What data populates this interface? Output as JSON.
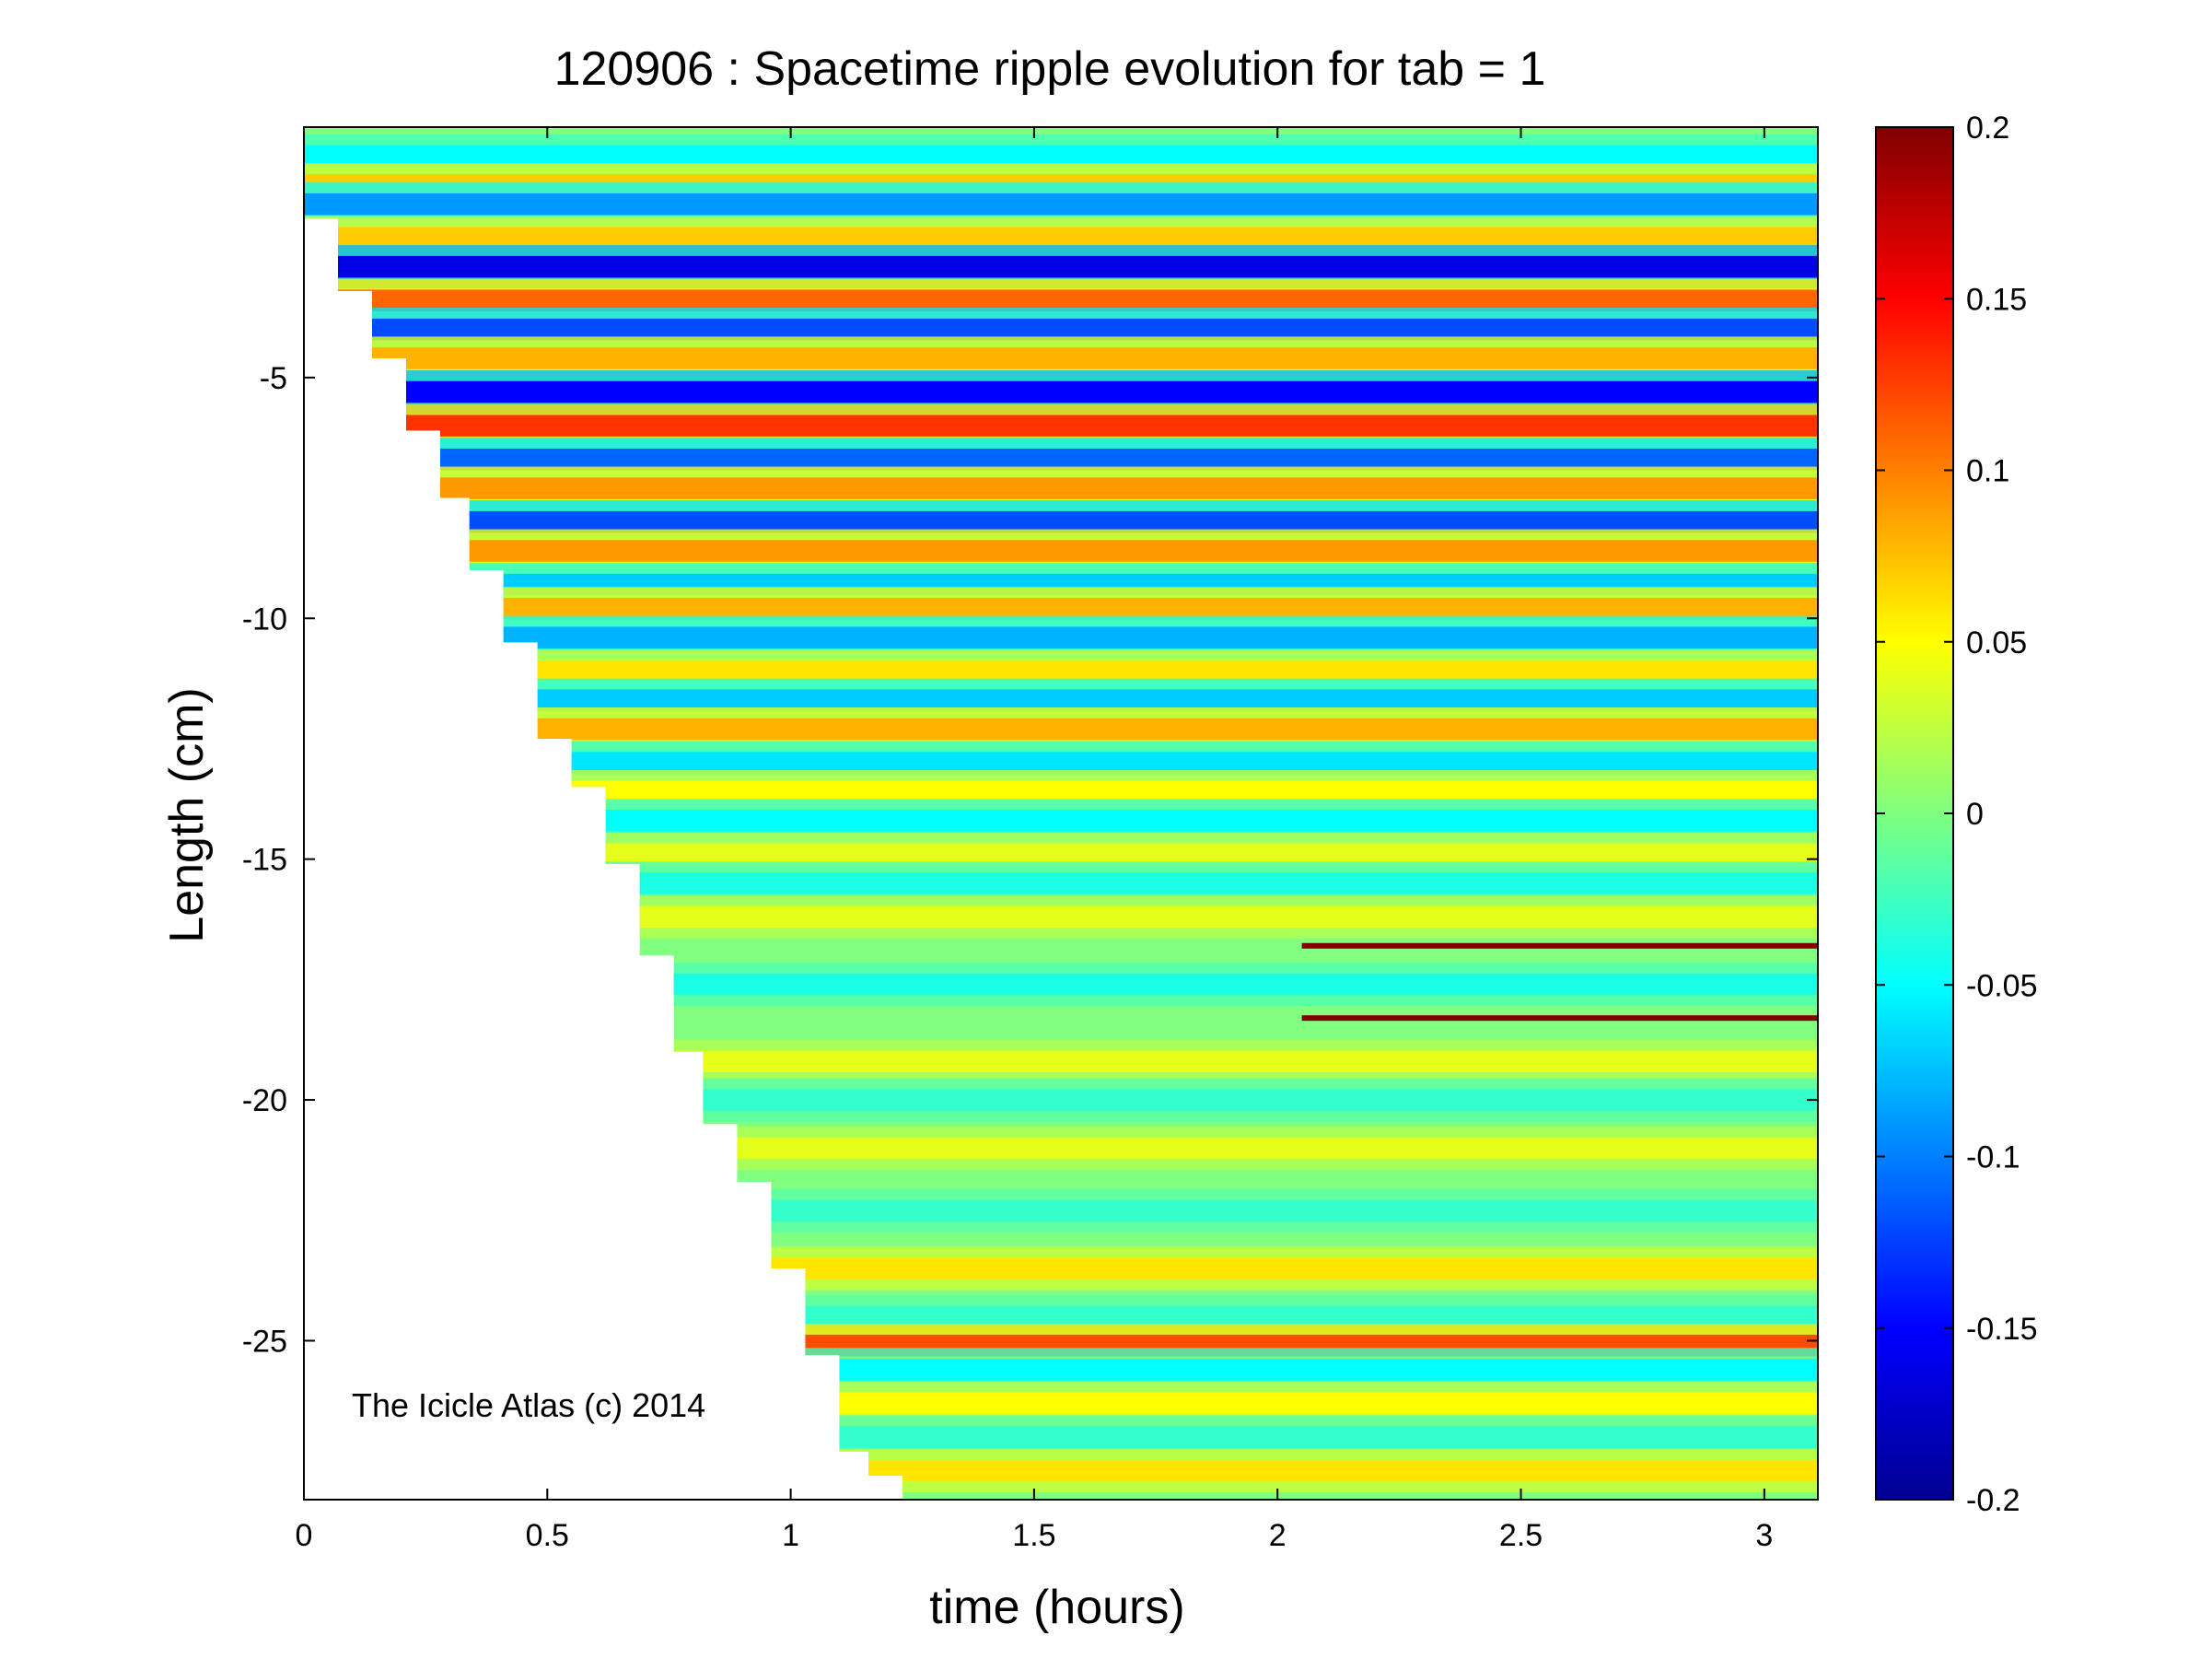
{
  "chart_data": {
    "type": "heatmap",
    "title": "120906 : Spacetime ripple evolution for tab = 1",
    "xlabel": "time (hours)",
    "ylabel": "Length (cm)",
    "xlim": [
      0,
      3.11
    ],
    "ylim": [
      -28.3,
      0.2
    ],
    "xticks": [
      0,
      0.5,
      1,
      1.5,
      2,
      2.5,
      3
    ],
    "xtick_labels": [
      "0",
      "0.5",
      "1",
      "1.5",
      "2",
      "2.5",
      "3"
    ],
    "yticks": [
      -5,
      -10,
      -15,
      -20,
      -25
    ],
    "ytick_labels": [
      "-5",
      "-10",
      "-15",
      "-20",
      "-25"
    ],
    "colormap": "jet",
    "clim": [
      -0.2,
      0.2
    ],
    "colorbar_ticks": [
      0.2,
      0.15,
      0.1,
      0.05,
      0,
      -0.05,
      -0.1,
      -0.15,
      -0.2
    ],
    "colorbar_labels": [
      "0.2",
      "0.15",
      "0.1",
      "0.05",
      "0",
      "-0.05",
      "-0.1",
      "-0.15",
      "-0.2"
    ],
    "annotation": "The Icicle Atlas (c) 2014",
    "growth_front": {
      "description_free_points_t": [
        0,
        0.07,
        0.14,
        0.21,
        0.28,
        0.34,
        0.41,
        0.48,
        0.55,
        0.62,
        0.69,
        0.76,
        0.82,
        0.89,
        0.96,
        1.03,
        1.1,
        1.16,
        1.23,
        1.42
      ],
      "points_length": [
        -0.2,
        -1.7,
        -3.2,
        -4.6,
        -6.1,
        -7.5,
        -9.0,
        -10.5,
        -12.5,
        -13.5,
        -15.1,
        -17.0,
        -19.0,
        -20.5,
        -21.7,
        -23.5,
        -25.3,
        -27.3,
        -27.8,
        -28.3
      ]
    },
    "bands": [
      {
        "length": -0.4,
        "amplitude": -0.05
      },
      {
        "length": -1.0,
        "amplitude": 0.07
      },
      {
        "length": -1.4,
        "amplitude": -0.09
      },
      {
        "length": -2.1,
        "amplitude": 0.07
      },
      {
        "length": -2.7,
        "amplitude": -0.16
      },
      {
        "length": -3.4,
        "amplitude": 0.11
      },
      {
        "length": -4.0,
        "amplitude": -0.12
      },
      {
        "length": -4.6,
        "amplitude": 0.08
      },
      {
        "length": -5.3,
        "amplitude": -0.15
      },
      {
        "length": -6.0,
        "amplitude": 0.13
      },
      {
        "length": -6.7,
        "amplitude": -0.11
      },
      {
        "length": -7.3,
        "amplitude": 0.09
      },
      {
        "length": -8.0,
        "amplitude": -0.12
      },
      {
        "length": -8.6,
        "amplitude": 0.09
      },
      {
        "length": -9.3,
        "amplitude": -0.07
      },
      {
        "length": -9.8,
        "amplitude": 0.08
      },
      {
        "length": -10.4,
        "amplitude": -0.08
      },
      {
        "length": -11.1,
        "amplitude": 0.06
      },
      {
        "length": -11.7,
        "amplitude": -0.07
      },
      {
        "length": -12.3,
        "amplitude": 0.08
      },
      {
        "length": -13.0,
        "amplitude": -0.06
      },
      {
        "length": -13.6,
        "amplitude": 0.05
      },
      {
        "length": -14.2,
        "amplitude": -0.05
      },
      {
        "length": -14.9,
        "amplitude": 0.04
      },
      {
        "length": -15.5,
        "amplitude": -0.04
      },
      {
        "length": -16.2,
        "amplitude": 0.04
      },
      {
        "length": -17.6,
        "amplitude": -0.04
      },
      {
        "length": -19.2,
        "amplitude": 0.04
      },
      {
        "length": -20.0,
        "amplitude": -0.03
      },
      {
        "length": -21.0,
        "amplitude": 0.04
      },
      {
        "length": -22.3,
        "amplitude": -0.03
      },
      {
        "length": -23.5,
        "amplitude": 0.06
      },
      {
        "length": -24.5,
        "amplitude": -0.03
      },
      {
        "length": -25.1,
        "amplitude": 0.12
      },
      {
        "length": -25.6,
        "amplitude": -0.05
      },
      {
        "length": -26.3,
        "amplitude": 0.05
      },
      {
        "length": -27.0,
        "amplitude": -0.03
      },
      {
        "length": -27.7,
        "amplitude": 0.06
      }
    ],
    "defect_lines": [
      {
        "length": -16.8,
        "t_start": 2.05,
        "t_end": 3.11,
        "amplitude": 0.2
      },
      {
        "length": -18.3,
        "t_start": 2.05,
        "t_end": 3.11,
        "amplitude": 0.2
      }
    ]
  }
}
